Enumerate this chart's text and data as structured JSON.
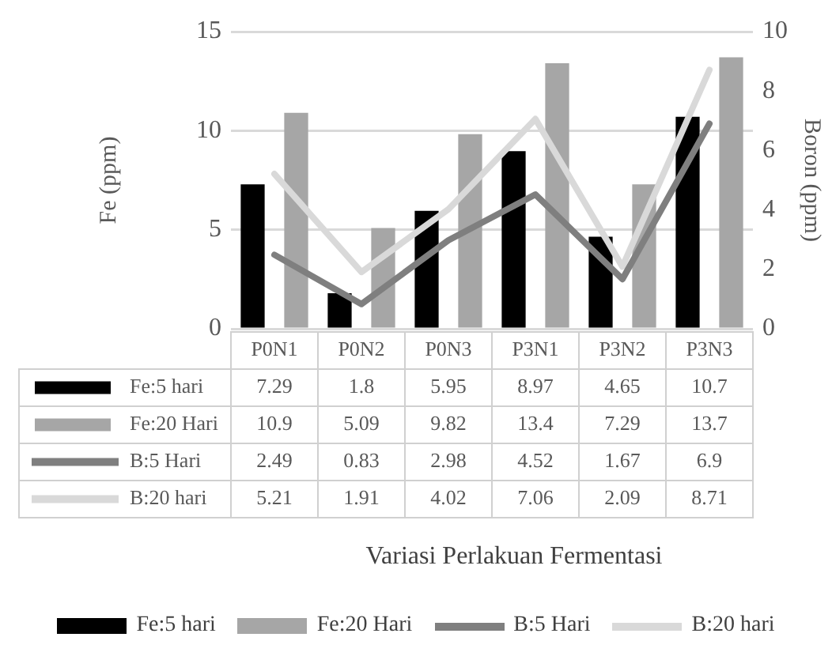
{
  "chart_data": {
    "type": "bar",
    "annotations": [
      "Variasi Perlakuan Fermentasi"
    ],
    "ylabel": "Fe (ppm)",
    "y2label": "Boron (ppm)",
    "categories": [
      "P0N1",
      "P0N2",
      "P0N3",
      "P3N1",
      "P3N2",
      "P3N3"
    ],
    "series": [
      {
        "name": "Fe:5 hari",
        "color": "#000000",
        "values": [
          7.29,
          1.8,
          5.95,
          8.97,
          4.65,
          10.7
        ]
      },
      {
        "name": "Fe:20 Hari",
        "color": "#a6a6a6",
        "values": [
          10.9,
          5.09,
          9.82,
          13.4,
          7.29,
          13.7
        ]
      },
      {
        "name": "B:5 Hari",
        "type": "line",
        "axis": "y2",
        "color": "#7f7f7f",
        "values": [
          2.49,
          0.83,
          2.98,
          4.52,
          1.67,
          6.9
        ]
      },
      {
        "name": "B:20 hari",
        "type": "line",
        "axis": "y2",
        "color": "#d9d9d9",
        "values": [
          5.21,
          1.91,
          4.02,
          7.06,
          2.09,
          8.71
        ]
      }
    ],
    "ylim": [
      0,
      15
    ],
    "yticks": [
      0,
      5,
      10,
      15
    ],
    "y2lim": [
      0,
      10
    ],
    "y2ticks": [
      0,
      2,
      4,
      6,
      8,
      10
    ],
    "grid": "y",
    "marker": "none",
    "line_style": "solid",
    "data_labels": true,
    "legend": "bottom"
  }
}
